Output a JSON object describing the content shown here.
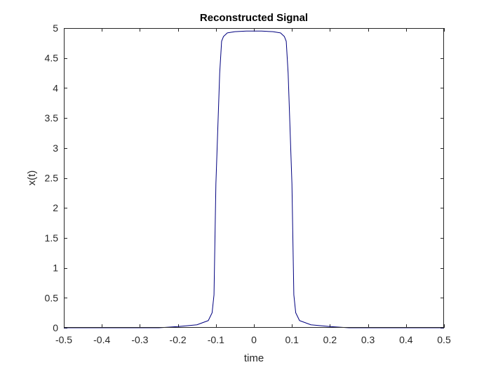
{
  "chart_data": {
    "type": "line",
    "title": "Reconstructed Signal",
    "xlabel": "time",
    "ylabel": "x(t)",
    "xlim": [
      -0.5,
      0.5
    ],
    "ylim": [
      0,
      5
    ],
    "xticks": [
      -0.5,
      -0.4,
      -0.3,
      -0.2,
      -0.1,
      0,
      0.1,
      0.2,
      0.3,
      0.4,
      0.5
    ],
    "xtick_labels": [
      "-0.5",
      "-0.4",
      "-0.3",
      "-0.2",
      "-0.1",
      "0",
      "0.1",
      "0.2",
      "0.3",
      "0.4",
      "0.5"
    ],
    "yticks": [
      0,
      0.5,
      1,
      1.5,
      2,
      2.5,
      3,
      3.5,
      4,
      4.5,
      5
    ],
    "ytick_labels": [
      "0",
      "0.5",
      "1",
      "1.5",
      "2",
      "2.5",
      "3",
      "3.5",
      "4",
      "4.5",
      "5"
    ],
    "grid": false,
    "series": [
      {
        "color": "#00007f",
        "x": [
          -0.5,
          -0.25,
          -0.2,
          -0.15,
          -0.12,
          -0.11,
          -0.105,
          -0.1,
          -0.09,
          -0.085,
          -0.08,
          -0.07,
          -0.05,
          -0.02,
          0,
          0.02,
          0.05,
          0.07,
          0.08,
          0.085,
          0.09,
          0.1,
          0.105,
          0.11,
          0.12,
          0.15,
          0.2,
          0.25,
          0.5
        ],
        "y": [
          0,
          0,
          0.02,
          0.05,
          0.12,
          0.25,
          0.55,
          2.4,
          4.25,
          4.78,
          4.86,
          4.92,
          4.94,
          4.95,
          4.95,
          4.95,
          4.94,
          4.92,
          4.86,
          4.78,
          4.25,
          2.4,
          0.55,
          0.25,
          0.12,
          0.05,
          0.02,
          0,
          0
        ]
      }
    ]
  }
}
